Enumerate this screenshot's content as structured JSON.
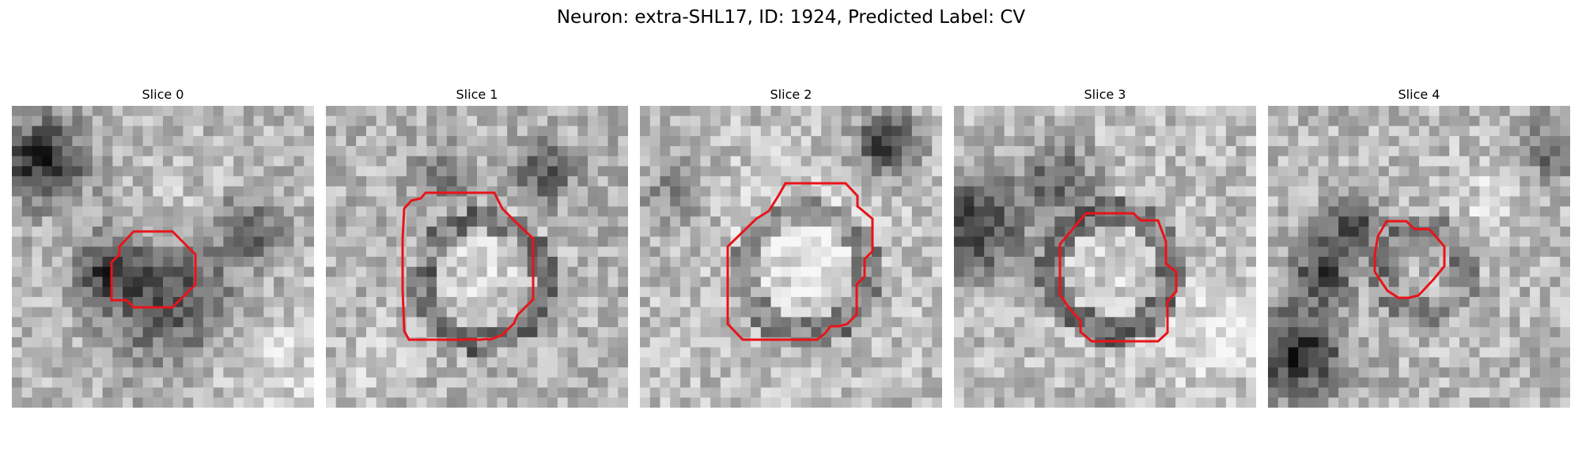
{
  "figure": {
    "title": "Neuron: extra-SHL17, ID: 1924, Predicted Label: CV"
  },
  "contour_color": "#e8141a",
  "slices": [
    {
      "title": "Slice 0"
    },
    {
      "title": "Slice 1"
    },
    {
      "title": "Slice 2"
    },
    {
      "title": "Slice 3"
    },
    {
      "title": "Slice 4"
    }
  ]
}
